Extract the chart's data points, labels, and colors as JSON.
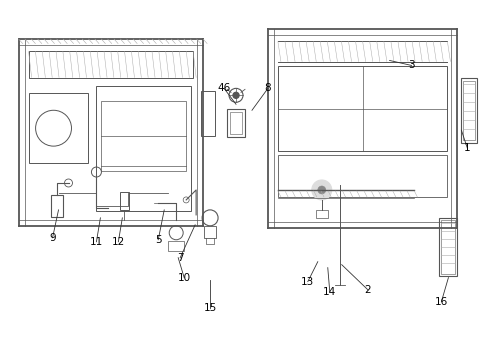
{
  "bg_color": "#ffffff",
  "line_color": "#555555",
  "text_color": "#000000",
  "fig_width": 4.89,
  "fig_height": 3.6,
  "dpi": 100
}
